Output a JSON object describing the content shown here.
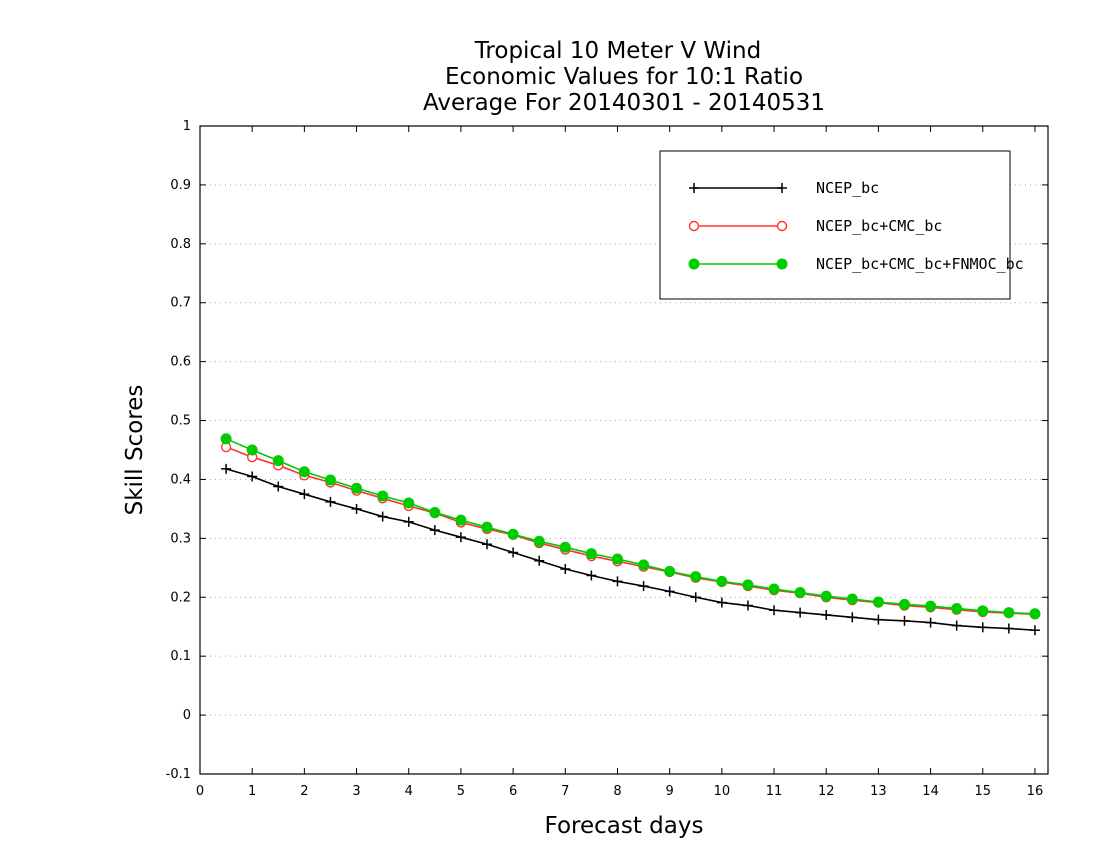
{
  "chart_data": {
    "type": "line",
    "title_lines": [
      "Tropical 10 Meter V Wind",
      "Economic Values for 10:1 Ratio",
      "Average For 20140301 - 20140531"
    ],
    "xlabel": "Forecast days",
    "ylabel": "Skill Scores",
    "xlim": [
      0,
      16.25
    ],
    "ylim": [
      -0.1,
      1
    ],
    "xticks": [
      0,
      1,
      2,
      3,
      4,
      5,
      6,
      7,
      8,
      9,
      10,
      11,
      12,
      13,
      14,
      15,
      16
    ],
    "xtick_labels": [
      "0",
      "1",
      "2",
      "3",
      "4",
      "5",
      "6",
      "7",
      "8",
      "9",
      "10",
      "11",
      "12",
      "13",
      "14",
      "15",
      "16"
    ],
    "yticks": [
      -0.1,
      0,
      0.1,
      0.2,
      0.3,
      0.4,
      0.5,
      0.6,
      0.7,
      0.8,
      0.9,
      1
    ],
    "ytick_labels": [
      "-0.1",
      "0",
      "0.1",
      "0.2",
      "0.3",
      "0.4",
      "0.5",
      "0.6",
      "0.7",
      "0.8",
      "0.9",
      "1"
    ],
    "grid": true,
    "legend_position": "top-right",
    "x": [
      0.5,
      1,
      1.5,
      2,
      2.5,
      3,
      3.5,
      4,
      4.5,
      5,
      5.5,
      6,
      6.5,
      7,
      7.5,
      8,
      8.5,
      9,
      9.5,
      10,
      10.5,
      11,
      11.5,
      12,
      12.5,
      13,
      13.5,
      14,
      14.5,
      15,
      15.5,
      16
    ],
    "series": [
      {
        "name": "NCEP_bc",
        "color": "#000000",
        "marker": "plus",
        "values": [
          0.418,
          0.405,
          0.388,
          0.375,
          0.362,
          0.35,
          0.337,
          0.328,
          0.314,
          0.302,
          0.29,
          0.276,
          0.262,
          0.248,
          0.237,
          0.227,
          0.219,
          0.21,
          0.2,
          0.191,
          0.186,
          0.178,
          0.174,
          0.17,
          0.166,
          0.162,
          0.16,
          0.157,
          0.152,
          0.149,
          0.147,
          0.144
        ]
      },
      {
        "name": "NCEP_bc+CMC_bc",
        "color": "#ff3333",
        "marker": "open-circle",
        "values": [
          0.455,
          0.438,
          0.424,
          0.407,
          0.395,
          0.381,
          0.368,
          0.355,
          0.343,
          0.327,
          0.316,
          0.306,
          0.292,
          0.281,
          0.27,
          0.261,
          0.252,
          0.243,
          0.233,
          0.226,
          0.219,
          0.212,
          0.207,
          0.2,
          0.195,
          0.191,
          0.186,
          0.183,
          0.179,
          0.175,
          0.173,
          0.171
        ]
      },
      {
        "name": "NCEP_bc+CMC_bc+FNMOC_bc",
        "color": "#00cc00",
        "marker": "filled-circle",
        "values": [
          0.469,
          0.45,
          0.432,
          0.413,
          0.399,
          0.385,
          0.372,
          0.36,
          0.344,
          0.331,
          0.319,
          0.307,
          0.295,
          0.285,
          0.274,
          0.265,
          0.255,
          0.244,
          0.235,
          0.227,
          0.221,
          0.214,
          0.208,
          0.202,
          0.197,
          0.192,
          0.188,
          0.185,
          0.181,
          0.177,
          0.174,
          0.172
        ]
      }
    ]
  }
}
